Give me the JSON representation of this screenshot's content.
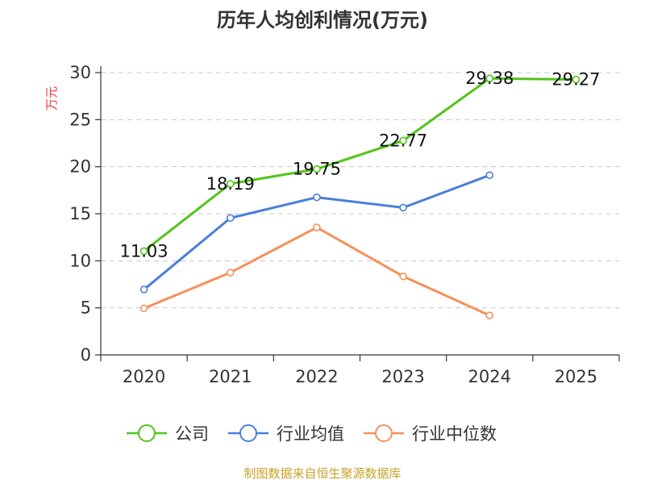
{
  "chart_data": {
    "type": "line",
    "title": "历年人均创利情况(万元)",
    "ylabel": "万元",
    "xlabel": "",
    "ylim": [
      0,
      30
    ],
    "yticks": [
      0,
      5,
      10,
      15,
      20,
      25,
      30
    ],
    "categories": [
      "2020",
      "2021",
      "2022",
      "2023",
      "2024",
      "2025"
    ],
    "series": [
      {
        "name": "公司",
        "color": "#52c41a",
        "values": [
          11.03,
          18.19,
          19.75,
          22.77,
          29.38,
          29.27
        ],
        "labels": [
          "11.03",
          "18.19",
          "19.75",
          "22.77",
          "29.38",
          "29.27"
        ]
      },
      {
        "name": "行业均值",
        "color": "#4a7fdb",
        "values": [
          6.95,
          14.55,
          16.75,
          15.65,
          19.1,
          null
        ]
      },
      {
        "name": "行业中位数",
        "color": "#f7905a",
        "values": [
          4.95,
          8.75,
          13.55,
          8.35,
          4.2,
          null
        ]
      }
    ],
    "legend_position": "bottom",
    "grid": true
  },
  "footer": {
    "source": "制图数据来自恒生聚源数据库"
  }
}
